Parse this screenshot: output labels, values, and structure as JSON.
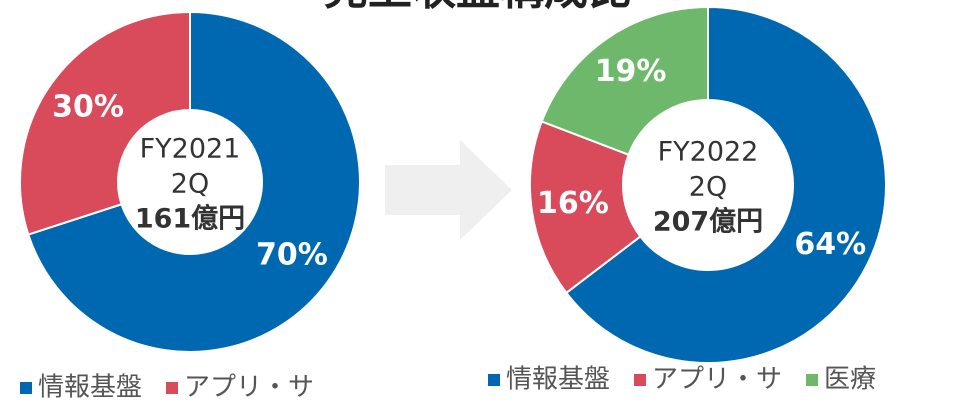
{
  "title": "売上収益構成比",
  "chart_data": [
    {
      "type": "pie",
      "center_labels": [
        "FY2021",
        "2Q",
        "161億円"
      ],
      "categories": [
        "情報基盤",
        "アプリ・サ"
      ],
      "values": [
        70,
        30
      ],
      "value_labels": [
        "70%",
        "30%"
      ],
      "colors": [
        "#0068b0",
        "#d94a5a"
      ]
    },
    {
      "type": "pie",
      "center_labels": [
        "FY2022",
        "2Q",
        "207億円"
      ],
      "categories": [
        "情報基盤",
        "アプリ・サ",
        "医療"
      ],
      "values": [
        64,
        16,
        19
      ],
      "value_labels": [
        "64%",
        "16%",
        "19%"
      ],
      "colors": [
        "#0068b0",
        "#d94a5a",
        "#6db86a"
      ]
    }
  ]
}
